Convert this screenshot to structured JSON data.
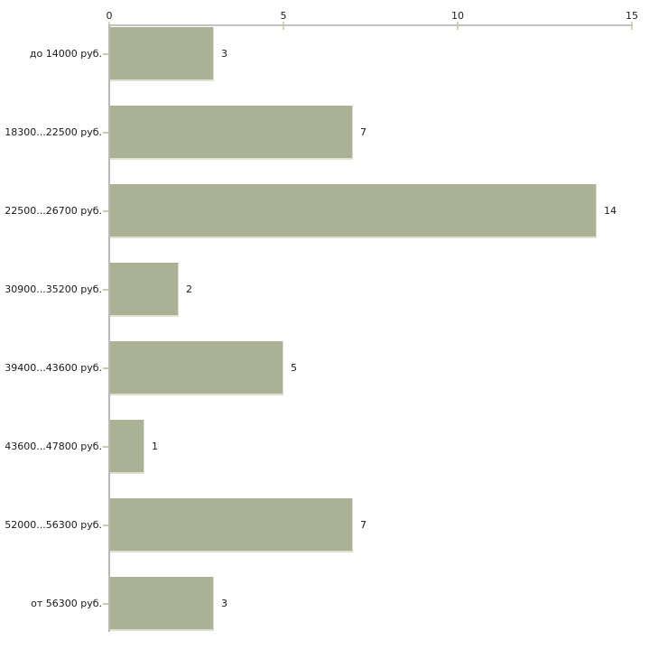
{
  "chart_data": {
    "type": "bar",
    "orientation": "horizontal",
    "title": "",
    "xlabel": "",
    "ylabel": "",
    "categories": [
      "до 14000 руб.",
      "18300...22500 руб.",
      "22500...26700 руб.",
      "30900...35200 руб.",
      "39400...43600 руб.",
      "43600...47800 руб.",
      "52000...56300 руб.",
      "от 56300 руб."
    ],
    "values": [
      3,
      7,
      14,
      2,
      5,
      1,
      7,
      3
    ],
    "value_labels": [
      "3",
      "7",
      "14",
      "2",
      "5",
      "1",
      "7",
      "3"
    ],
    "xlim": [
      0,
      15
    ],
    "x_ticks": [
      0,
      5,
      10,
      15
    ],
    "x_tick_labels": [
      "0",
      "5",
      "10",
      "15"
    ],
    "axis_position": "top",
    "grid": false,
    "legend": false,
    "colors": {
      "bar": "#aab194",
      "bar_edge": "#dfe2d0",
      "axis_line": "#c2c2c2",
      "y_axis_line": "#b9b9b9",
      "tick_mark": "#d3d5ab",
      "category_tick_mark": "#c9cca4",
      "text": "#1a1a1a",
      "background": "#ffffff"
    }
  }
}
